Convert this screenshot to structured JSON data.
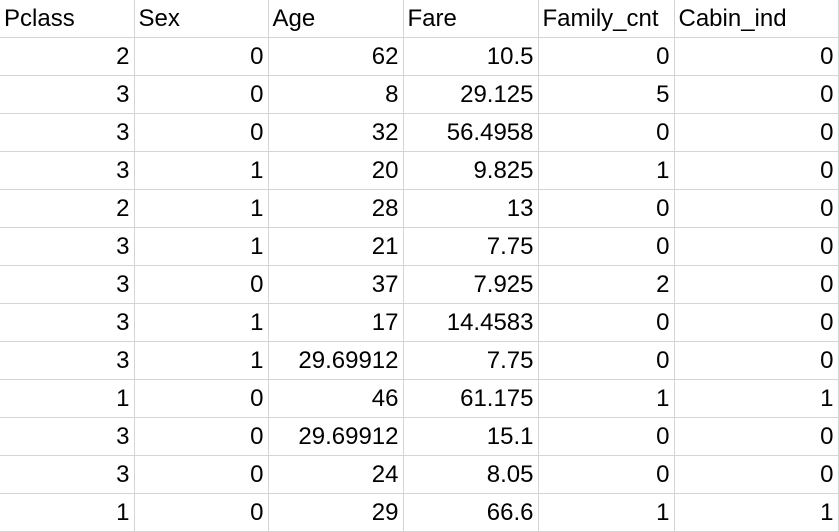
{
  "sheet": {
    "headers": [
      "Pclass",
      "Sex",
      "Age",
      "Fare",
      "Family_cnt",
      "Cabin_ind"
    ],
    "rows": [
      [
        "2",
        "0",
        "62",
        "10.5",
        "0",
        "0"
      ],
      [
        "3",
        "0",
        "8",
        "29.125",
        "5",
        "0"
      ],
      [
        "3",
        "0",
        "32",
        "56.4958",
        "0",
        "0"
      ],
      [
        "3",
        "1",
        "20",
        "9.825",
        "1",
        "0"
      ],
      [
        "2",
        "1",
        "28",
        "13",
        "0",
        "0"
      ],
      [
        "3",
        "1",
        "21",
        "7.75",
        "0",
        "0"
      ],
      [
        "3",
        "0",
        "37",
        "7.925",
        "2",
        "0"
      ],
      [
        "3",
        "1",
        "17",
        "14.4583",
        "0",
        "0"
      ],
      [
        "3",
        "1",
        "29.69912",
        "7.75",
        "0",
        "0"
      ],
      [
        "1",
        "0",
        "46",
        "61.175",
        "1",
        "1"
      ],
      [
        "3",
        "0",
        "29.69912",
        "15.1",
        "0",
        "0"
      ],
      [
        "3",
        "0",
        "24",
        "8.05",
        "0",
        "0"
      ],
      [
        "1",
        "0",
        "29",
        "66.6",
        "1",
        "1"
      ]
    ]
  }
}
